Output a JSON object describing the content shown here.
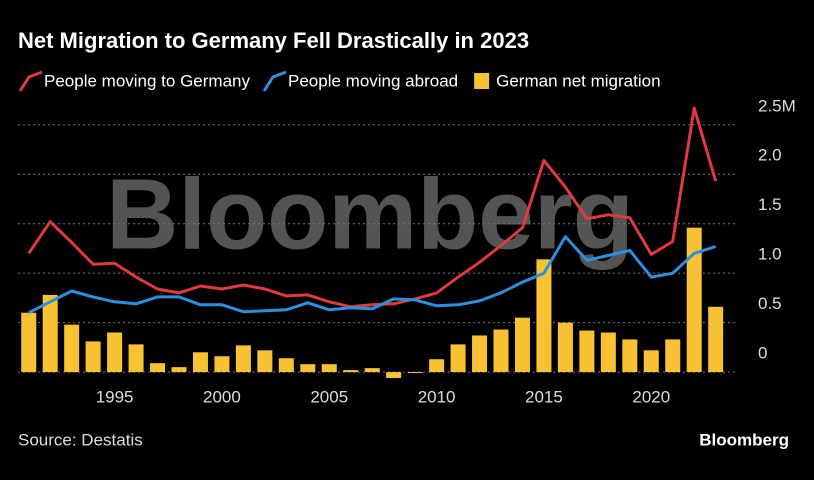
{
  "chart_data": {
    "type": "combo",
    "title": "Net Migration to Germany Fell Drastically in 2023",
    "source": "Source: Destatis",
    "watermark": "Bloomberg",
    "logo": "Bloomberg",
    "x": [
      1991,
      1992,
      1993,
      1994,
      1995,
      1996,
      1997,
      1998,
      1999,
      2000,
      2001,
      2002,
      2003,
      2004,
      2005,
      2006,
      2007,
      2008,
      2009,
      2010,
      2011,
      2012,
      2013,
      2014,
      2015,
      2016,
      2017,
      2018,
      2019,
      2020,
      2021,
      2022,
      2023
    ],
    "xlim": [
      1990.5,
      2023.9
    ],
    "xticks": [
      1995,
      2000,
      2005,
      2010,
      2015,
      2020
    ],
    "ylim": [
      -0.07,
      2.7
    ],
    "yticks": [
      {
        "value": 2.5,
        "label": "2.5M"
      },
      {
        "value": 2.0,
        "label": "2.0"
      },
      {
        "value": 1.5,
        "label": "1.5"
      },
      {
        "value": 1.0,
        "label": "1.0"
      },
      0.5,
      0
    ],
    "grid": true,
    "series": [
      {
        "name": "People moving to Germany",
        "type": "line",
        "color": "#e0393e",
        "values": [
          1.2,
          1.52,
          1.31,
          1.09,
          1.1,
          0.96,
          0.84,
          0.8,
          0.87,
          0.84,
          0.88,
          0.84,
          0.77,
          0.78,
          0.71,
          0.66,
          0.68,
          0.69,
          0.74,
          0.8,
          0.96,
          1.11,
          1.28,
          1.46,
          2.14,
          1.87,
          1.55,
          1.59,
          1.56,
          1.19,
          1.32,
          2.67,
          1.93
        ]
      },
      {
        "name": "People moving abroad",
        "type": "line",
        "color": "#2b90e0",
        "values": [
          0.6,
          0.71,
          0.82,
          0.76,
          0.71,
          0.69,
          0.76,
          0.76,
          0.68,
          0.68,
          0.61,
          0.62,
          0.63,
          0.7,
          0.63,
          0.65,
          0.64,
          0.74,
          0.73,
          0.67,
          0.68,
          0.72,
          0.8,
          0.91,
          1.0,
          1.37,
          1.13,
          1.18,
          1.23,
          0.96,
          1.0,
          1.2,
          1.27
        ]
      },
      {
        "name": "German net migration",
        "type": "bar",
        "color": "#f9c232",
        "values": [
          0.6,
          0.78,
          0.48,
          0.31,
          0.4,
          0.28,
          0.09,
          0.05,
          0.2,
          0.16,
          0.27,
          0.22,
          0.14,
          0.08,
          0.08,
          0.02,
          0.04,
          -0.06,
          -0.01,
          0.13,
          0.28,
          0.37,
          0.43,
          0.55,
          1.14,
          0.5,
          0.42,
          0.4,
          0.33,
          0.22,
          0.33,
          1.46,
          0.66
        ]
      }
    ]
  }
}
